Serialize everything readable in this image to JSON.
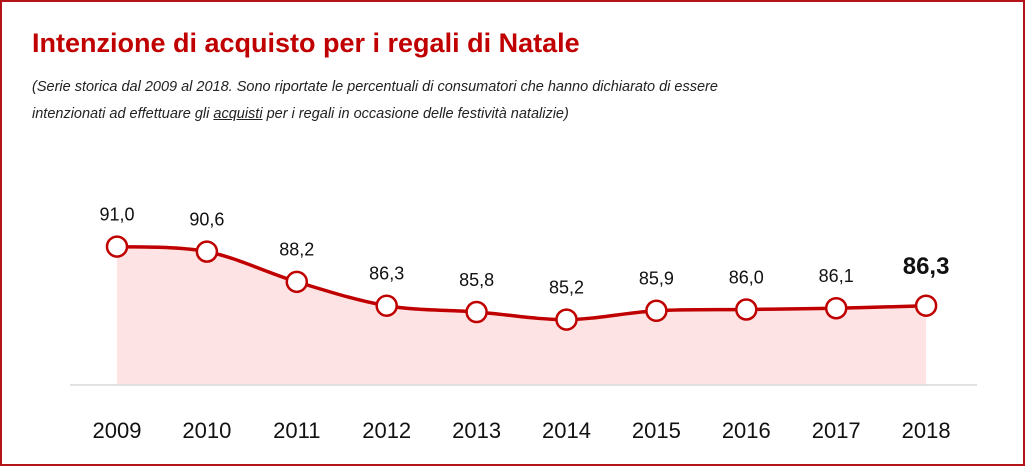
{
  "chart_data": {
    "type": "line",
    "title": "Intenzione di acquisto per i regali di Natale",
    "subtitle": [
      "(Serie storica dal 2009 al 2018. Sono riportate le percentuali di consumatori che hanno dichiarato di essere",
      "intenzionati ad effettuare gli ",
      "acquisti",
      " per i regali in  occasione delle festività natalizie)"
    ],
    "categories": [
      "2009",
      "2010",
      "2011",
      "2012",
      "2013",
      "2014",
      "2015",
      "2016",
      "2017",
      "2018"
    ],
    "series": [
      {
        "name": null,
        "color": "#c00000",
        "values": [
          91.0,
          90.6,
          88.2,
          86.3,
          85.8,
          85.2,
          85.9,
          86.0,
          86.1,
          86.3
        ],
        "value_labels": [
          "91,0",
          "90,6",
          "88,2",
          "86,3",
          "85,8",
          "85,2",
          "85,9",
          "86,0",
          "86,1",
          "86,3"
        ]
      }
    ],
    "area_color": "#fde3e3",
    "ylim": [
      80,
      92
    ]
  }
}
